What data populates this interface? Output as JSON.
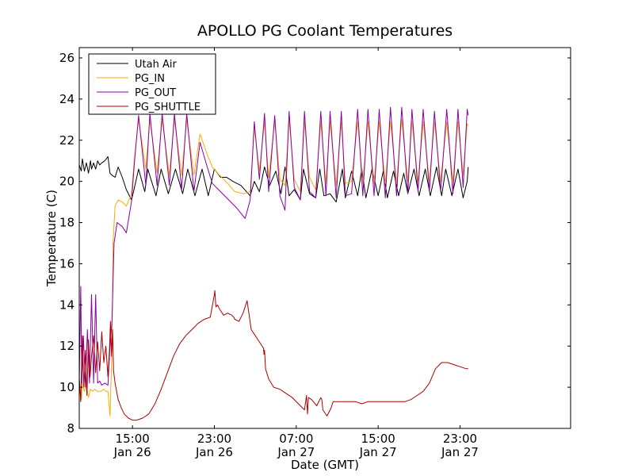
{
  "chart_data": {
    "type": "line",
    "title": "APOLLO PG Coolant Temperatures",
    "xlabel": "Date (GMT)",
    "ylabel": "Temperature (C)",
    "ylim": [
      8,
      26.5
    ],
    "xlim_hours": [
      9.8,
      57.8
    ],
    "x_unit": "hours since Jan 26 00:00 GMT",
    "y_ticks": [
      8,
      10,
      12,
      14,
      16,
      18,
      20,
      22,
      24,
      26
    ],
    "x_ticks": [
      {
        "h": 15,
        "line1": "15:00",
        "line2": "Jan 26"
      },
      {
        "h": 23,
        "line1": "23:00",
        "line2": "Jan 26"
      },
      {
        "h": 31,
        "line1": "07:00",
        "line2": "Jan 27"
      },
      {
        "h": 39,
        "line1": "15:00",
        "line2": "Jan 27"
      },
      {
        "h": 47,
        "line1": "23:00",
        "line2": "Jan 27"
      }
    ],
    "legend_position": "top-left",
    "series": [
      {
        "name": "Utah Air",
        "color": "#000000",
        "x": [
          9.8,
          10.0,
          10.1,
          10.3,
          10.5,
          10.7,
          10.9,
          11.0,
          11.2,
          11.4,
          11.6,
          11.8,
          12.0,
          12.3,
          12.6,
          12.8,
          13.0,
          13.3,
          13.6,
          14.0,
          14.4,
          14.9,
          15.1,
          15.6,
          16.2,
          16.5,
          17.3,
          17.8,
          18.5,
          19.2,
          19.9,
          20.4,
          21.1,
          21.8,
          22.4,
          23.0,
          23.6,
          24.2,
          24.8,
          25.6,
          26.5,
          26.9,
          27.4,
          27.9,
          28.4,
          29.0,
          29.5,
          29.9,
          30.3,
          30.8,
          31.4,
          31.7,
          32.3,
          32.9,
          33.3,
          33.7,
          34.3,
          34.9,
          35.5,
          35.8,
          36.4,
          37.0,
          37.4,
          37.8,
          38.4,
          39.0,
          39.5,
          39.9,
          40.5,
          41.0,
          41.5,
          41.9,
          42.5,
          43.0,
          43.6,
          44.1,
          44.7,
          45.2,
          45.6,
          46.2,
          46.8,
          47.3,
          47.7,
          47.8
        ],
        "y": [
          20.8,
          20.5,
          21.1,
          20.5,
          20.9,
          20.4,
          21.0,
          20.6,
          20.9,
          20.6,
          21.0,
          20.8,
          20.9,
          21.0,
          21.2,
          20.4,
          20.3,
          20.2,
          20.7,
          20.2,
          19.6,
          19.1,
          19.5,
          20.6,
          19.5,
          20.6,
          19.3,
          20.6,
          19.4,
          20.6,
          19.4,
          20.6,
          19.3,
          20.6,
          19.3,
          20.6,
          20.2,
          20.2,
          20.0,
          19.8,
          19.3,
          20.0,
          19.5,
          20.7,
          19.8,
          20.5,
          19.4,
          20.7,
          19.3,
          19.6,
          19.1,
          20.6,
          19.4,
          19.2,
          20.6,
          19.3,
          19.4,
          19.0,
          20.6,
          19.2,
          20.5,
          19.3,
          20.6,
          19.2,
          20.6,
          19.3,
          20.5,
          19.2,
          20.5,
          19.3,
          20.4,
          19.4,
          20.6,
          19.3,
          20.6,
          19.3,
          20.7,
          19.3,
          20.6,
          19.3,
          20.6,
          19.2,
          20.0,
          20.7
        ]
      },
      {
        "name": "PG_IN",
        "color": "#ffaa00",
        "x": [
          9.8,
          10.0,
          10.1,
          10.3,
          10.5,
          10.7,
          10.9,
          11.1,
          11.3,
          11.6,
          11.9,
          12.2,
          12.4,
          12.6,
          12.8,
          13.0,
          13.1,
          13.3,
          13.6,
          14.0,
          14.4,
          14.9,
          15.2,
          15.6,
          16.3,
          16.7,
          17.4,
          17.9,
          18.6,
          19.1,
          19.8,
          20.3,
          21.0,
          21.6,
          22.3,
          22.8,
          23.5,
          24.3,
          25.0,
          25.9,
          26.5,
          26.9,
          27.4,
          27.9,
          28.3,
          28.9,
          29.4,
          29.9,
          30.3,
          30.8,
          31.4,
          31.8,
          32.3,
          32.9,
          33.4,
          33.9,
          34.3,
          34.9,
          35.4,
          35.8,
          36.4,
          37.0,
          37.5,
          38.0,
          38.6,
          39.1,
          39.7,
          40.2,
          40.8,
          41.3,
          41.9,
          42.3,
          42.9,
          43.4,
          44.0,
          44.5,
          45.1,
          45.7,
          46.3,
          46.8,
          47.3,
          47.7,
          47.8
        ],
        "y": [
          10.0,
          9.4,
          10.2,
          9.8,
          10.1,
          9.5,
          9.9,
          9.8,
          9.9,
          9.8,
          9.8,
          9.9,
          9.8,
          9.8,
          8.6,
          11.8,
          17.0,
          18.8,
          19.1,
          19.0,
          18.8,
          19.4,
          21.2,
          23.0,
          20.6,
          23.0,
          20.4,
          23.0,
          20.3,
          23.0,
          20.3,
          23.0,
          20.3,
          22.3,
          21.3,
          20.7,
          20.3,
          19.9,
          19.5,
          19.4,
          19.5,
          22.6,
          20.5,
          22.9,
          20.2,
          22.9,
          20.1,
          19.8,
          23.0,
          20.1,
          19.5,
          22.9,
          20.2,
          19.6,
          22.9,
          19.9,
          22.9,
          19.8,
          22.9,
          19.9,
          20.0,
          22.9,
          19.9,
          22.9,
          19.9,
          22.9,
          19.9,
          22.9,
          19.9,
          23.0,
          20.0,
          22.9,
          20.0,
          22.9,
          20.0,
          22.9,
          20.0,
          22.9,
          20.0,
          22.9,
          20.3,
          22.8,
          22.7
        ]
      },
      {
        "name": "PG_OUT",
        "color": "#8800aa",
        "x": [
          9.8,
          9.95,
          10.05,
          10.2,
          10.4,
          10.6,
          10.8,
          11.0,
          11.2,
          11.4,
          11.6,
          11.8,
          12.0,
          12.3,
          12.6,
          12.8,
          13.0,
          13.2,
          13.5,
          14.0,
          14.4,
          14.9,
          15.2,
          15.6,
          16.3,
          16.7,
          17.4,
          17.9,
          18.6,
          19.1,
          19.8,
          20.3,
          21.0,
          21.6,
          22.3,
          22.8,
          23.6,
          24.4,
          25.2,
          26.0,
          26.5,
          26.9,
          27.4,
          27.9,
          28.3,
          28.9,
          29.4,
          29.9,
          30.3,
          30.8,
          31.4,
          31.8,
          32.3,
          32.9,
          33.4,
          33.9,
          34.3,
          34.9,
          35.4,
          35.8,
          36.4,
          37.0,
          37.5,
          38.0,
          38.6,
          39.1,
          39.7,
          40.2,
          40.8,
          41.3,
          41.9,
          42.3,
          42.9,
          43.4,
          44.0,
          44.5,
          45.1,
          45.7,
          46.3,
          46.8,
          47.3,
          47.7,
          47.8
        ],
        "y": [
          10.2,
          14.9,
          10.2,
          12.5,
          10.0,
          12.8,
          10.2,
          14.5,
          10.2,
          14.5,
          10.2,
          10.3,
          10.1,
          10.2,
          10.1,
          12.0,
          13.2,
          17.0,
          18.0,
          17.8,
          17.5,
          19.0,
          21.0,
          23.2,
          19.8,
          23.3,
          19.8,
          23.3,
          19.8,
          23.3,
          19.6,
          23.3,
          19.5,
          21.9,
          20.7,
          19.9,
          19.5,
          19.1,
          18.7,
          18.2,
          19.1,
          22.9,
          20.1,
          23.3,
          19.5,
          23.2,
          19.3,
          18.6,
          23.4,
          19.7,
          19.1,
          23.4,
          19.5,
          19.2,
          23.4,
          19.3,
          23.4,
          19.2,
          23.4,
          19.3,
          19.4,
          23.5,
          19.3,
          23.5,
          19.3,
          23.5,
          19.2,
          23.6,
          19.3,
          23.6,
          19.4,
          23.5,
          19.5,
          23.5,
          19.5,
          23.4,
          19.5,
          23.5,
          19.4,
          23.5,
          19.7,
          23.5,
          23.2
        ]
      },
      {
        "name": "PG_SHUTTLE",
        "color": "#aa0000",
        "x": [
          9.8,
          9.95,
          10.1,
          10.25,
          10.4,
          10.55,
          10.7,
          10.85,
          11.0,
          11.2,
          11.4,
          11.6,
          11.8,
          12.0,
          12.2,
          12.4,
          12.6,
          12.75,
          12.85,
          12.95,
          13.05,
          13.15,
          13.3,
          13.6,
          13.9,
          14.2,
          14.6,
          15.0,
          15.4,
          16.0,
          16.6,
          17.2,
          17.8,
          18.4,
          19.0,
          19.6,
          20.2,
          20.8,
          21.4,
          22.0,
          22.6,
          23.0,
          23.05,
          23.15,
          23.3,
          23.5,
          23.9,
          24.3,
          24.7,
          24.9,
          25.0,
          25.4,
          25.8,
          26.2,
          26.6,
          27.0,
          27.4,
          27.8,
          27.85,
          27.9,
          28.0,
          28.3,
          28.8,
          29.4,
          30.0,
          30.6,
          31.2,
          31.8,
          32.0,
          32.1,
          32.2,
          32.5,
          33.0,
          33.4,
          33.5,
          33.6,
          34.0,
          34.4,
          34.6,
          35.0,
          35.6,
          36.2,
          36.8,
          37.4,
          38.0,
          38.6,
          39.2,
          39.8,
          40.4,
          41.0,
          41.6,
          42.2,
          42.8,
          43.4,
          44.0,
          44.6,
          45.2,
          45.8,
          46.4,
          47.0,
          47.6,
          47.8
        ],
        "y": [
          10.5,
          9.3,
          12.5,
          10.0,
          11.8,
          9.6,
          12.3,
          10.5,
          11.5,
          12.5,
          10.7,
          12.2,
          10.8,
          12.7,
          11.2,
          12.0,
          10.5,
          11.8,
          13.2,
          11.5,
          12.8,
          10.8,
          10.2,
          9.4,
          9.0,
          8.7,
          8.5,
          8.4,
          8.4,
          8.5,
          8.7,
          9.2,
          9.9,
          10.7,
          11.5,
          12.1,
          12.5,
          12.8,
          13.1,
          13.3,
          13.4,
          14.5,
          14.7,
          13.9,
          14.0,
          13.8,
          13.5,
          13.6,
          13.5,
          13.4,
          13.3,
          13.2,
          13.6,
          14.2,
          12.8,
          12.5,
          12.2,
          11.9,
          11.6,
          11.8,
          10.9,
          10.4,
          10.0,
          9.9,
          9.7,
          9.5,
          9.2,
          8.9,
          9.6,
          8.7,
          9.5,
          9.4,
          9.1,
          9.5,
          9.4,
          8.9,
          8.6,
          9.0,
          9.3,
          9.3,
          9.3,
          9.3,
          9.3,
          9.2,
          9.3,
          9.3,
          9.3,
          9.3,
          9.3,
          9.3,
          9.3,
          9.4,
          9.6,
          9.8,
          10.2,
          10.9,
          11.2,
          11.2,
          11.1,
          11.0,
          10.9,
          10.9
        ]
      }
    ]
  }
}
